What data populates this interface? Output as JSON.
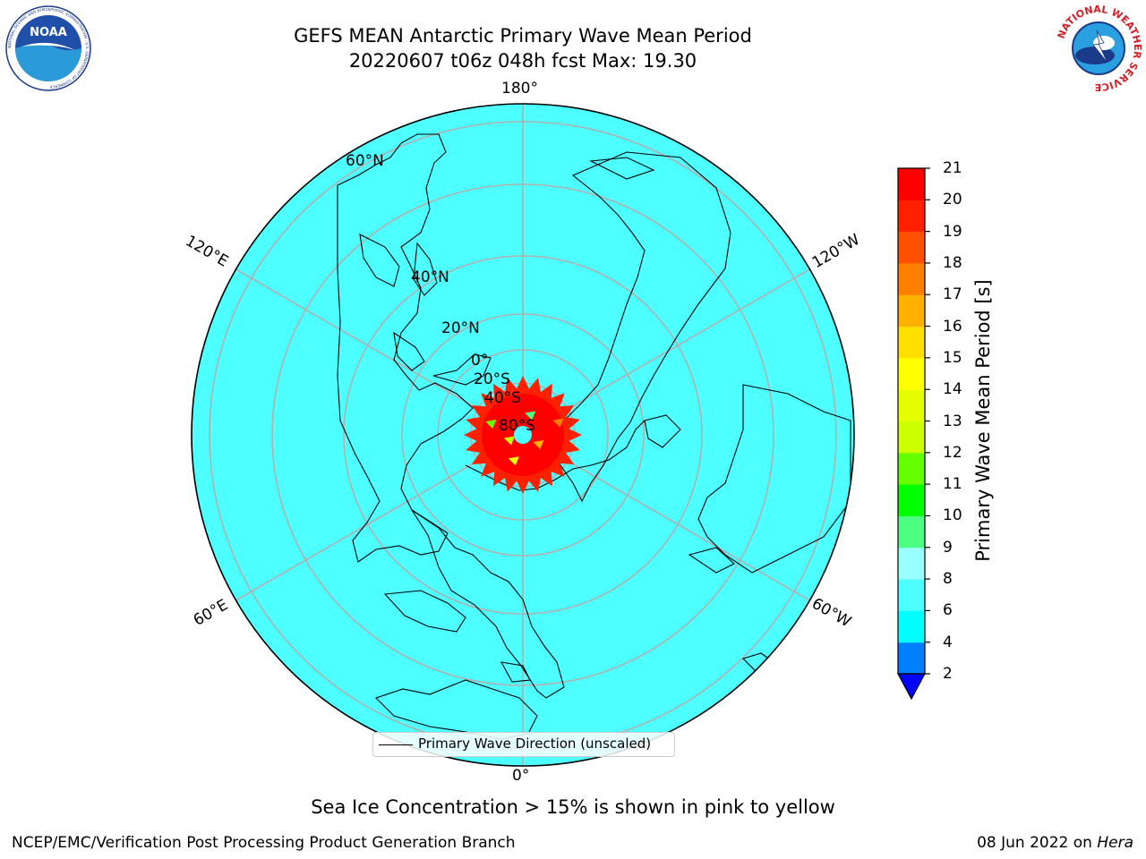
{
  "title": {
    "line1": "GEFS MEAN Antarctic Primary Wave Mean Period",
    "line2": "20220607 t06z 048h fcst   Max: 19.30"
  },
  "map": {
    "projection": "south-polar-stereographic",
    "ocean_color": "#4dffff",
    "graticule_color": "#b0b0b0",
    "longitude_labels": [
      "180°",
      "120°W",
      "60°W",
      "0°",
      "60°E",
      "120°E"
    ],
    "latitude_labels": [
      "60°N",
      "40°N",
      "20°N",
      "0°",
      "20°S",
      "40°S",
      "80°S"
    ],
    "hotspot": "wave-period field near the South Pole",
    "legend": "Primary Wave Direction (unscaled)"
  },
  "colorbar": {
    "label": "Primary Wave Mean Period [s]",
    "ticks": [
      "2",
      "4",
      "6",
      "8",
      "9",
      "10",
      "11",
      "12",
      "13",
      "14",
      "15",
      "16",
      "17",
      "18",
      "19",
      "20",
      "21"
    ],
    "colors": [
      "#0080ff",
      "#00ffff",
      "#4dffff",
      "#99ffff",
      "#4dff80",
      "#00ff00",
      "#66ff00",
      "#ccff00",
      "#e6ff00",
      "#ffff00",
      "#ffe000",
      "#ffb000",
      "#ff8000",
      "#ff5000",
      "#ff2000",
      "#ff0000"
    ],
    "under_color": "#0000ff"
  },
  "logos": {
    "noaa": {
      "text": "NOAA",
      "ring_text": "NATIONAL OCEANIC AND ATMOSPHERIC ADMINISTRATION · U.S. DEPARTMENT OF COMMERCE"
    },
    "nws": {
      "ring_text": "NATIONAL WEATHER SERVICE"
    }
  },
  "caption": "Sea Ice Concentration > 15% is shown in pink to yellow",
  "footer": {
    "left": "NCEP/EMC/Verification Post Processing Product Generation Branch",
    "date": "08 Jun 2022 on ",
    "host": "Hera"
  }
}
